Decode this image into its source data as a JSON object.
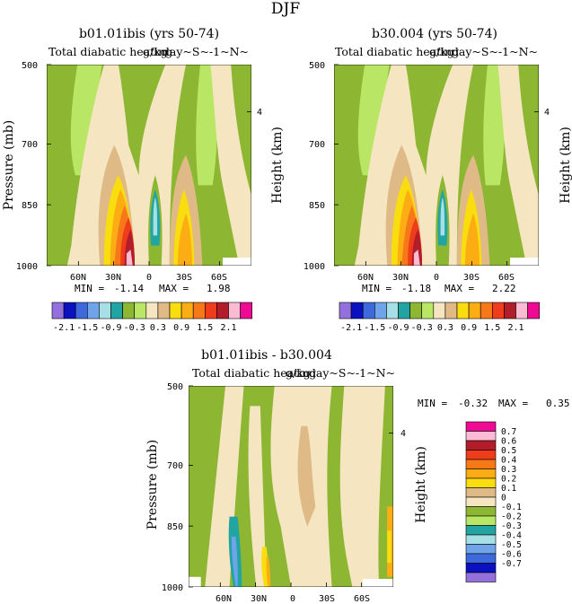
{
  "page_title": "DJF",
  "colors": {
    "olive": "#8db732",
    "lime": "#b9e765",
    "tan": "#f5e6c1",
    "sand": "#dfba86",
    "yellow": "#f9dd0f",
    "orange": "#fcad14",
    "dorange": "#f67818",
    "red": "#ef3d1c",
    "maroon": "#b21d2a",
    "pink": "#fbbcd3",
    "magenta": "#ee0a93",
    "teal": "#22a4a3",
    "cyan": "#a6dfe6",
    "lblue": "#6fa4ea",
    "blue": "#3d69dd",
    "navy": "#0b11bf",
    "purple": "#9370db"
  },
  "chart_data": [
    {
      "id": "panel-left",
      "type": "heatmap",
      "title": "b01.01ibis (yrs 50-74)",
      "subtitle_left": "Total diabatic heating",
      "subtitle_center": "g/kg",
      "subtitle_right": "day~S~-1~N~",
      "ylabel": "Pressure (mb)",
      "ylabel_right": "Height (km)",
      "y_ticks": [
        "500",
        "700",
        "850",
        "1000"
      ],
      "y_right_ticks": [
        "4"
      ],
      "x_ticks": [
        "60N",
        "30N",
        "0",
        "30S",
        "60S"
      ],
      "min_label": "MIN =",
      "min_value": "-1.14",
      "max_label": "MAX =",
      "max_value": "1.98",
      "ylim": [
        1000,
        500
      ],
      "xlim": [
        "90N",
        "90S"
      ]
    },
    {
      "id": "panel-right",
      "type": "heatmap",
      "title": "b30.004 (yrs 50-74)",
      "subtitle_left": "Total diabatic heating",
      "subtitle_center": "g/kg",
      "subtitle_right": "day~S~-1~N~",
      "ylabel": "Pressure (mb)",
      "ylabel_right": "Height (km)",
      "y_ticks": [
        "500",
        "700",
        "850",
        "1000"
      ],
      "y_right_ticks": [
        "4"
      ],
      "x_ticks": [
        "60N",
        "30N",
        "0",
        "30S",
        "60S"
      ],
      "min_label": "MIN =",
      "min_value": "-1.18",
      "max_label": "MAX =",
      "max_value": "2.22",
      "ylim": [
        1000,
        500
      ],
      "xlim": [
        "90N",
        "90S"
      ]
    },
    {
      "id": "panel-diff",
      "type": "heatmap",
      "title": "b01.01ibis - b30.004",
      "subtitle_left": "Total diabatic heating",
      "subtitle_center": "g/kg",
      "subtitle_right": "day~S~-1~N~",
      "ylabel": "Pressure (mb)",
      "ylabel_right": "Height (km)",
      "y_ticks": [
        "500",
        "700",
        "850",
        "1000"
      ],
      "y_right_ticks": [
        "4"
      ],
      "x_ticks": [
        "60N",
        "30N",
        "0",
        "30S",
        "60S"
      ],
      "min_label": "MIN =",
      "min_value": "-0.32",
      "max_label": "MAX =",
      "max_value": "0.35",
      "ylim": [
        1000,
        500
      ],
      "xlim": [
        "90N",
        "90S"
      ]
    }
  ],
  "colorbar_top": {
    "labels": [
      "-2.1",
      "-1.5",
      "-0.9",
      "-0.3",
      "0.3",
      "0.9",
      "1.5",
      "2.1"
    ],
    "colors": [
      "#9370db",
      "#0b11bf",
      "#3d69dd",
      "#6fa4ea",
      "#a6dfe6",
      "#22a4a3",
      "#8db732",
      "#b9e765",
      "#f5e6c1",
      "#dfba86",
      "#f9dd0f",
      "#fcad14",
      "#f67818",
      "#ef3d1c",
      "#b21d2a",
      "#fbbcd3",
      "#ee0a93"
    ]
  },
  "colorbar_diff": {
    "labels": [
      "0.7",
      "0.6",
      "0.5",
      "0.4",
      "0.3",
      "0.2",
      "0.1",
      "0",
      "-0.1",
      "-0.2",
      "-0.3",
      "-0.4",
      "-0.5",
      "-0.6",
      "-0.7"
    ],
    "colors": [
      "#ee0a93",
      "#fbbcd3",
      "#b21d2a",
      "#ef3d1c",
      "#f67818",
      "#fcad14",
      "#f9dd0f",
      "#dfba86",
      "#f5e6c1",
      "#8db732",
      "#b9e765",
      "#22a4a3",
      "#a6dfe6",
      "#6fa4ea",
      "#3d69dd",
      "#0b11bf",
      "#9370db"
    ]
  }
}
